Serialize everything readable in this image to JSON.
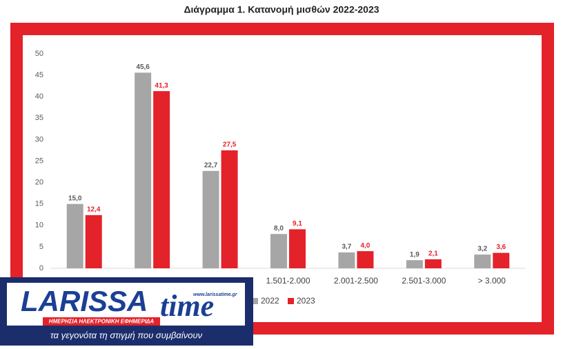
{
  "chart_data": {
    "type": "bar",
    "title": "Διάγραμμα 1. Κατανομή μισθών 2022-2023",
    "categories": [
      null,
      null,
      null,
      "1.501-2.000",
      "2.001-2.500",
      "2.501-3.000",
      "> 3.000"
    ],
    "series": [
      {
        "name": "2022",
        "color": "#a6a6a6",
        "values": [
          15.0,
          45.6,
          22.7,
          8.0,
          3.7,
          1.9,
          3.2
        ],
        "value_labels": [
          "15,0",
          "45,6",
          "22,7",
          "8,0",
          "3,7",
          "1,9",
          "3,2"
        ]
      },
      {
        "name": "2023",
        "color": "#e4222a",
        "values": [
          12.4,
          41.3,
          27.5,
          9.1,
          4.0,
          2.1,
          3.6
        ],
        "value_labels": [
          "12,4",
          "41,3",
          "27,5",
          "9,1",
          "4,0",
          "2,1",
          "3,6"
        ]
      }
    ],
    "ylim": [
      0,
      50
    ],
    "yticks": [
      0,
      5,
      10,
      15,
      20,
      25,
      30,
      35,
      40,
      45,
      50
    ],
    "grid": false,
    "legend": "bottom"
  },
  "logo": {
    "name_left": "LARISSA",
    "name_right": "time",
    "url": "www.larissatime.gr",
    "strap": "ΗΜΕΡΗΣΙΑ ΗΛΕΚΤΡΟΝΙΚΗ ΕΦΗΜΕΡΙΔΑ",
    "tagline": "τα γεγονότα τη στιγμή που συμβαίνουν"
  }
}
